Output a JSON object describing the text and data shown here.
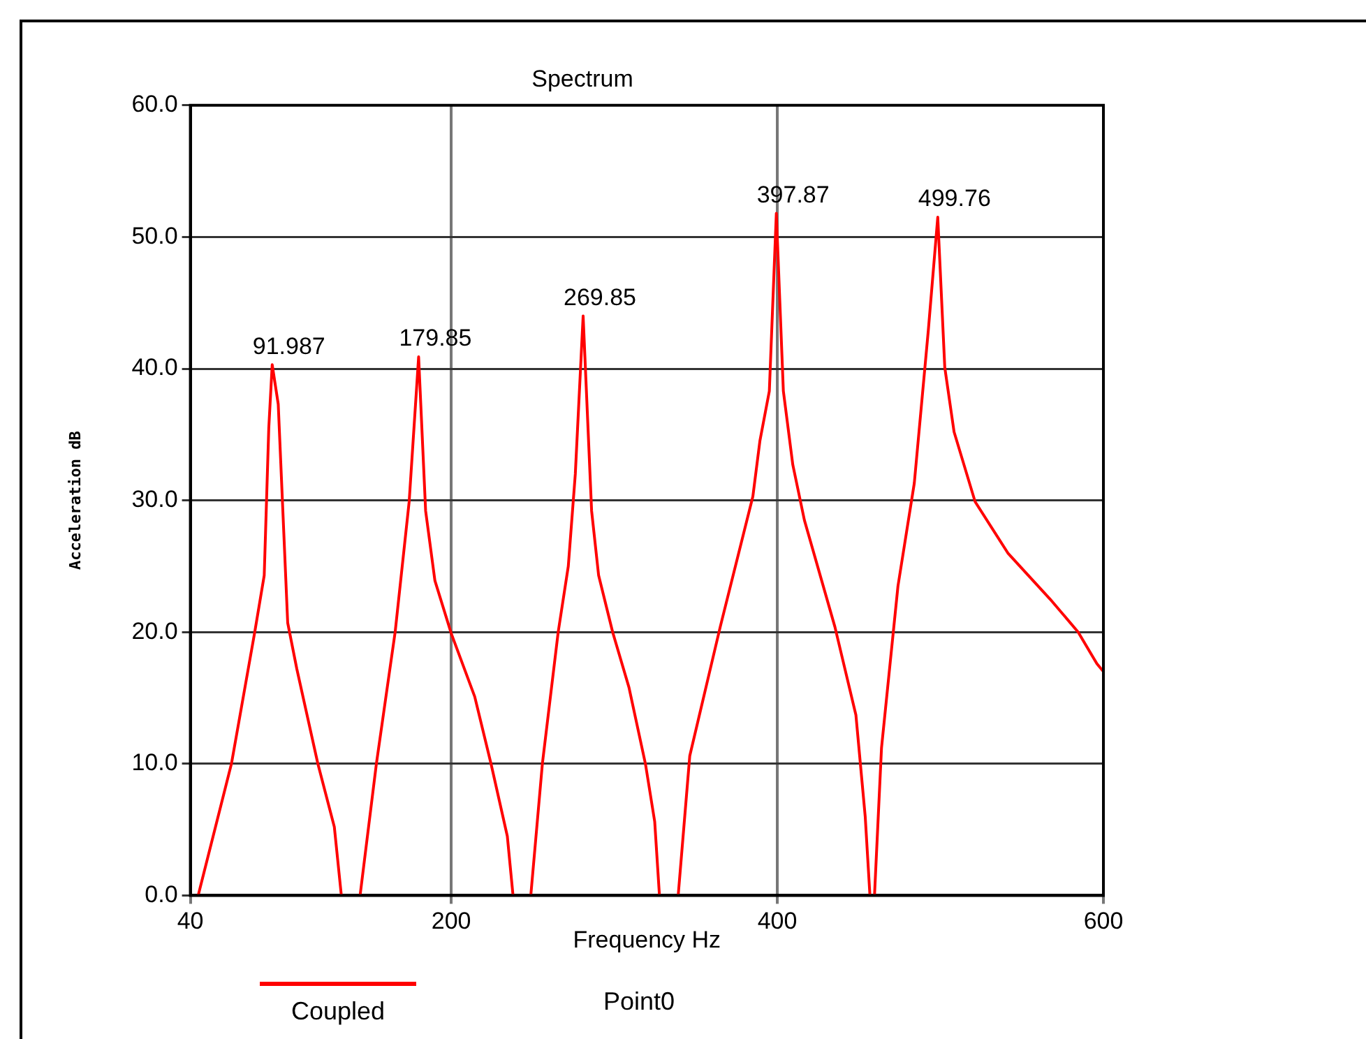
{
  "chart_data": {
    "type": "line",
    "title": "Spectrum",
    "xlabel": "Frequency Hz",
    "ylabel": "Acceleration dB",
    "x": [
      44.8,
      65.2,
      79.5,
      85.3,
      88.1,
      90.2,
      93.9,
      99.7,
      105.3,
      118.2,
      128.3,
      132.6,
      null,
      144.1,
      154.1,
      165.6,
      174.2,
      180,
      184.3,
      190,
      200,
      214.4,
      224.4,
      234.4,
      237.9,
      null,
      248.8,
      255.9,
      265.6,
      271.8,
      276.1,
      280.9,
      286.1,
      290.4,
      299,
      309,
      319.1,
      324.8,
      327.7,
      null,
      339.2,
      346.3,
      365,
      385,
      389.3,
      395.1,
      399.4,
      403.7,
      409.5,
      416.6,
      435.3,
      448.2,
      453.9,
      456.8,
      null,
      459.6,
      463.9,
      474,
      484,
      492.6,
      498.4,
      502.7,
      508.4,
      521.3,
      541.4,
      567.3,
      584.5,
      596,
      600
    ],
    "series": [
      {
        "name": "Coupled",
        "color": "#ff0000",
        "values": [
          0,
          10,
          20,
          24.3,
          35.5,
          40.3,
          37.3,
          20.7,
          17.2,
          10,
          5.2,
          0,
          null,
          0,
          10,
          20,
          29.9,
          40.9,
          29.2,
          23.9,
          19.9,
          15.1,
          10,
          4.5,
          0,
          null,
          0,
          10,
          20,
          25,
          32,
          44,
          29.2,
          24.3,
          20,
          15.8,
          10,
          5.6,
          0,
          null,
          0,
          10.6,
          20.4,
          30.3,
          34.5,
          38.3,
          51.8,
          38.3,
          32.7,
          28.5,
          20.4,
          13.7,
          6,
          0,
          null,
          0,
          11.2,
          23.5,
          31.3,
          42.9,
          51.5,
          40.1,
          35.2,
          29.9,
          26,
          22.5,
          20,
          17.6,
          17
        ]
      }
    ],
    "xlim": [
      40,
      600
    ],
    "xticks": [
      40,
      200,
      400,
      600
    ],
    "ylim": [
      0,
      60
    ],
    "yticks": [
      {
        "value": 0,
        "label": "0.0"
      },
      {
        "value": 10,
        "label": "10.0"
      },
      {
        "value": 20,
        "label": "20.0"
      },
      {
        "value": 30,
        "label": "30.0"
      },
      {
        "value": 40,
        "label": "40.0"
      },
      {
        "value": 50,
        "label": "50.0"
      },
      {
        "value": 60,
        "label": "60.0"
      }
    ],
    "grid": true,
    "legend": "bottom",
    "line_style": "solid",
    "marker": "none",
    "annotations": [
      {
        "text": "91.987",
        "x": 90.2,
        "y": 40.3
      },
      {
        "text": "179.85",
        "x": 180,
        "y": 40.9
      },
      {
        "text": "269.85",
        "x": 280.9,
        "y": 44
      },
      {
        "text": "397.87",
        "x": 399.4,
        "y": 51.8
      },
      {
        "text": "499.76",
        "x": 498.4,
        "y": 51.5
      },
      "Point0"
    ]
  }
}
